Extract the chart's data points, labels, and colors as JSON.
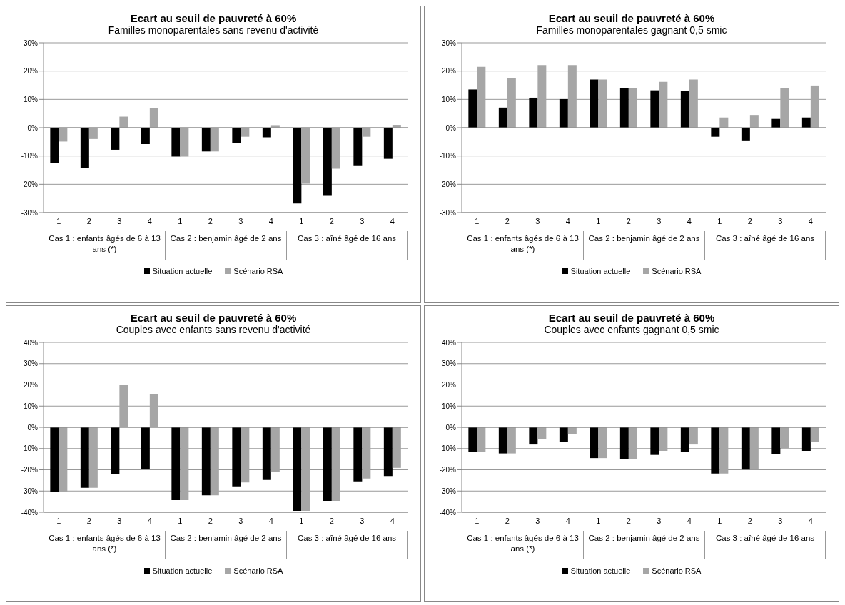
{
  "chart_data": [
    {
      "type": "bar",
      "title": "Ecart au seuil de pauvreté à 60%",
      "subtitle": "Familles monoparentales sans revenu d'activité",
      "categories": [
        "1",
        "2",
        "3",
        "4",
        "1",
        "2",
        "3",
        "4",
        "1",
        "2",
        "3",
        "4"
      ],
      "annotations": [
        "Cas 1 : enfants âgés de 6 à 13 ans (*)",
        "Cas 2 : benjamin âgé de 2 ans",
        "Cas 3 : aîné âgé de 16 ans"
      ],
      "series": [
        {
          "name": "Situation actuelle",
          "color": "#000000",
          "values": [
            -12.4,
            -14.2,
            -7.8,
            -5.8,
            -10.2,
            -8.4,
            -5.5,
            -3.4,
            -26.8,
            -24.1,
            -13.3,
            -11.0
          ]
        },
        {
          "name": "Scénario RSA",
          "color": "#a6a6a6",
          "values": [
            -4.9,
            -4.0,
            3.9,
            7.0,
            -10.2,
            -8.4,
            -3.2,
            0.9,
            -19.8,
            -14.5,
            -3.2,
            1.0
          ]
        }
      ],
      "ylim": [
        -30,
        30
      ],
      "yticks": [
        {
          "value": -30,
          "label": "-30%"
        },
        {
          "value": -20,
          "label": "-20%"
        },
        {
          "value": -10,
          "label": "-10%"
        },
        {
          "value": 0,
          "label": "0%"
        },
        {
          "value": 10,
          "label": "10%"
        },
        {
          "value": 20,
          "label": "20%"
        },
        {
          "value": 30,
          "label": "30%"
        }
      ],
      "grid": "y",
      "legend": "bottom"
    },
    {
      "type": "bar",
      "title": "Ecart au seuil de pauvreté à 60%",
      "subtitle": "Familles monoparentales gagnant 0,5 smic",
      "categories": [
        "1",
        "2",
        "3",
        "4",
        "1",
        "2",
        "3",
        "4",
        "1",
        "2",
        "3",
        "4"
      ],
      "annotations": [
        "Cas 1 : enfants âgés de 6 à 13 ans (*)",
        "Cas 2 : benjamin âgé de 2 ans",
        "Cas 3 : aîné âgé de 16 ans"
      ],
      "series": [
        {
          "name": "Situation actuelle",
          "color": "#000000",
          "values": [
            13.5,
            7.1,
            10.6,
            10.1,
            17.0,
            13.9,
            13.2,
            13.0,
            -3.2,
            -4.5,
            3.1,
            3.6
          ]
        },
        {
          "name": "Scénario RSA",
          "color": "#a6a6a6",
          "values": [
            21.5,
            17.4,
            22.1,
            22.1,
            17.0,
            13.9,
            16.2,
            17.0,
            3.6,
            4.5,
            14.1,
            14.9
          ]
        }
      ],
      "ylim": [
        -30,
        30
      ],
      "yticks": [
        {
          "value": -30,
          "label": "-30%"
        },
        {
          "value": -20,
          "label": "-20%"
        },
        {
          "value": -10,
          "label": "-10%"
        },
        {
          "value": 0,
          "label": "0%"
        },
        {
          "value": 10,
          "label": "10%"
        },
        {
          "value": 20,
          "label": "20%"
        },
        {
          "value": 30,
          "label": "30%"
        }
      ],
      "grid": "y",
      "legend": "bottom"
    },
    {
      "type": "bar",
      "title": "Ecart au seuil de pauvreté à 60%",
      "subtitle": "Couples avec enfants sans revenu d'activité",
      "categories": [
        "1",
        "2",
        "3",
        "4",
        "1",
        "2",
        "3",
        "4",
        "1",
        "2",
        "3",
        "4"
      ],
      "annotations": [
        "Cas 1 : enfants âgés de 6 à 13 ans (*)",
        "Cas 2 : benjamin âgé de 2 ans",
        "Cas 3 : aîné âgé de 16 ans"
      ],
      "series": [
        {
          "name": "Situation actuelle",
          "color": "#000000",
          "values": [
            -30.4,
            -28.5,
            -22.1,
            -19.5,
            -34.3,
            -32.0,
            -27.8,
            -24.8,
            -39.3,
            -34.6,
            -25.5,
            -22.9
          ]
        },
        {
          "name": "Scénario RSA",
          "color": "#a6a6a6",
          "values": [
            -30.4,
            -28.5,
            20.0,
            15.8,
            -34.3,
            -32.0,
            -26.0,
            -21.1,
            -39.3,
            -34.6,
            -24.1,
            -19.1
          ]
        }
      ],
      "ylim": [
        -40,
        40
      ],
      "yticks": [
        {
          "value": -40,
          "label": "-40%"
        },
        {
          "value": -30,
          "label": "-30%"
        },
        {
          "value": -20,
          "label": "-20%"
        },
        {
          "value": -10,
          "label": "-10%"
        },
        {
          "value": 0,
          "label": "0%"
        },
        {
          "value": 10,
          "label": "10%"
        },
        {
          "value": 20,
          "label": "20%"
        },
        {
          "value": 30,
          "label": "30%"
        },
        {
          "value": 40,
          "label": "40%"
        }
      ],
      "grid": "y",
      "legend": "bottom"
    },
    {
      "type": "bar",
      "title": "Ecart au seuil de pauvreté à 60%",
      "subtitle": "Couples avec enfants gagnant 0,5 smic",
      "categories": [
        "1",
        "2",
        "3",
        "4",
        "1",
        "2",
        "3",
        "4",
        "1",
        "2",
        "3",
        "4"
      ],
      "annotations": [
        "Cas 1 : enfants âgés de 6 à 13 ans (*)",
        "Cas 2 : benjamin âgé de 2 ans",
        "Cas 3 : aîné âgé de 16 ans"
      ],
      "series": [
        {
          "name": "Situation actuelle",
          "color": "#000000",
          "values": [
            -11.5,
            -12.3,
            -8.1,
            -7.0,
            -14.5,
            -14.9,
            -13.0,
            -11.5,
            -21.8,
            -19.9,
            -12.6,
            -11.1
          ]
        },
        {
          "name": "Scénario RSA",
          "color": "#a6a6a6",
          "values": [
            -11.5,
            -12.3,
            -5.7,
            -3.2,
            -14.5,
            -14.9,
            -11.1,
            -8.1,
            -21.8,
            -19.9,
            -9.8,
            -6.8
          ]
        }
      ],
      "ylim": [
        -40,
        40
      ],
      "yticks": [
        {
          "value": -40,
          "label": "-40%"
        },
        {
          "value": -30,
          "label": "-30%"
        },
        {
          "value": -20,
          "label": "-20%"
        },
        {
          "value": -10,
          "label": "-10%"
        },
        {
          "value": 0,
          "label": "0%"
        },
        {
          "value": 10,
          "label": "10%"
        },
        {
          "value": 20,
          "label": "20%"
        },
        {
          "value": 30,
          "label": "30%"
        },
        {
          "value": 40,
          "label": "40%"
        }
      ],
      "grid": "y",
      "legend": "bottom"
    }
  ]
}
